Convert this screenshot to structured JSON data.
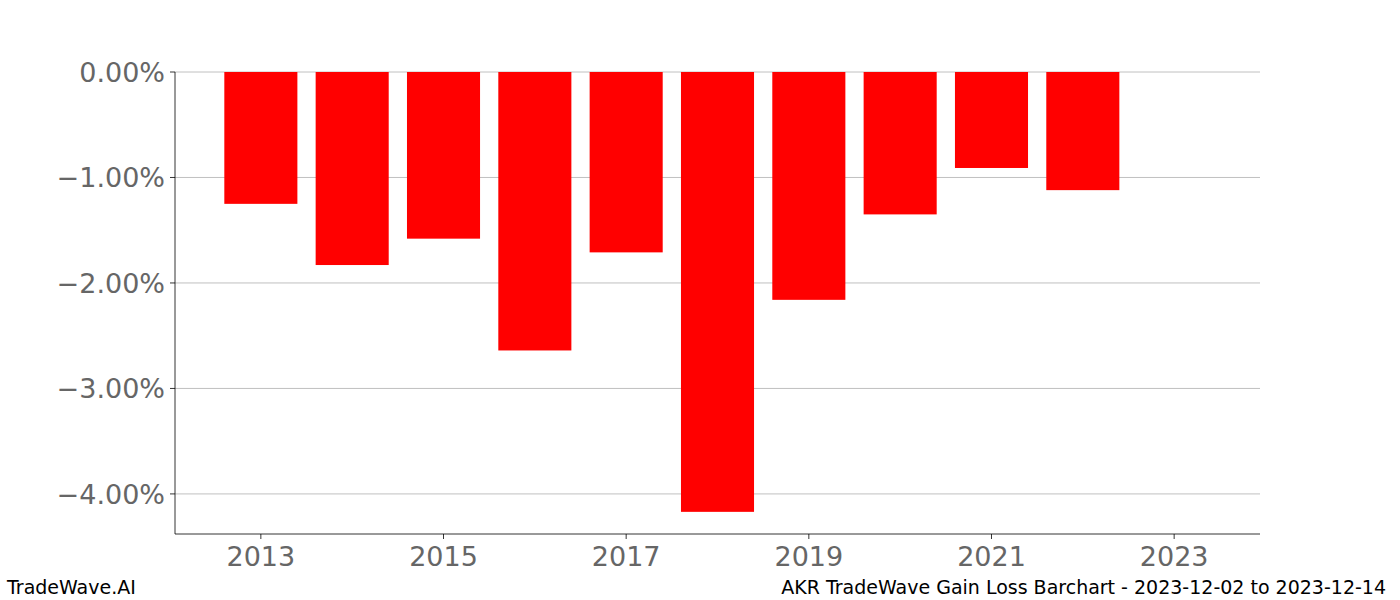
{
  "chart_data": {
    "type": "bar",
    "title": "AKR TradeWave Gain Loss Barchart - 2023-12-02 to 2023-12-14",
    "annotations": [
      "TradeWave.AI"
    ],
    "x": [
      2013,
      2014,
      2015,
      2016,
      2017,
      2018,
      2019,
      2020,
      2021,
      2022
    ],
    "values": [
      -1.25,
      -1.83,
      -1.58,
      -2.64,
      -1.71,
      -4.17,
      -2.16,
      -1.35,
      -0.91,
      -1.12
    ],
    "color": "#ff0000",
    "xlim": [
      2012.06,
      2023.94
    ],
    "xticks": [
      2013,
      2015,
      2017,
      2019,
      2021,
      2023
    ],
    "ylim": [
      -4.38,
      0
    ],
    "yticks": [
      {
        "value": 0,
        "label": "0.00%"
      },
      {
        "value": -1,
        "label": "−1.00%"
      },
      {
        "value": -2,
        "label": "−2.00%"
      },
      {
        "value": -3,
        "label": "−3.00%"
      },
      {
        "value": -4,
        "label": "−4.00%"
      }
    ],
    "grid": true
  }
}
